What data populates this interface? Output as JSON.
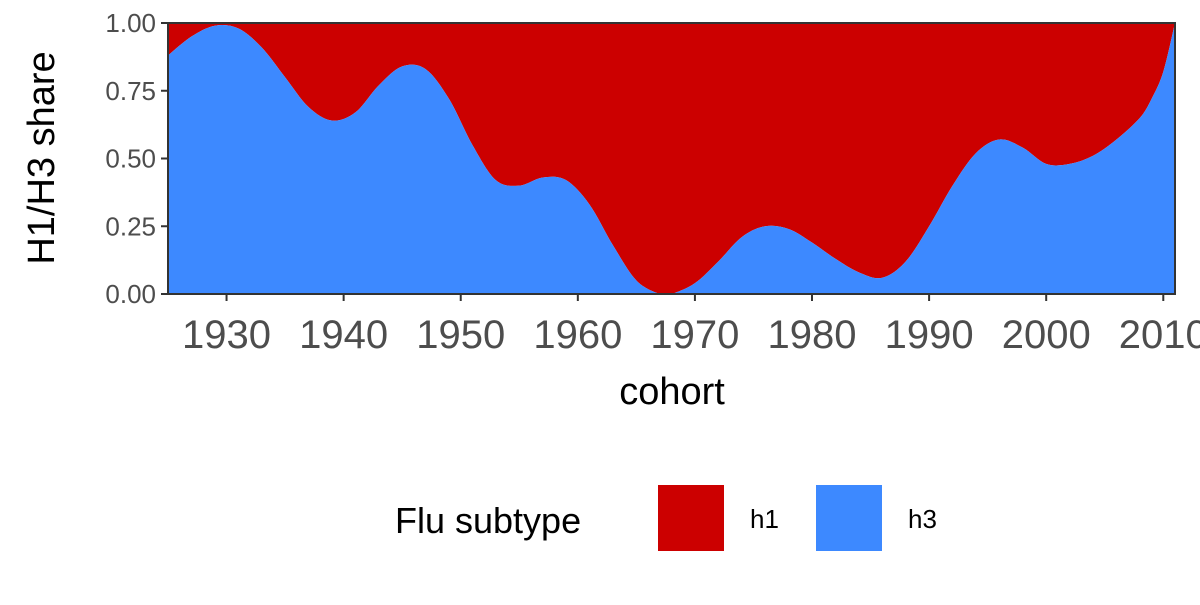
{
  "chart_data": {
    "type": "area",
    "stacked": true,
    "normalized": true,
    "xlabel": "cohort",
    "ylabel": "H1/H3 share",
    "xlim": [
      1925,
      2011
    ],
    "ylim": [
      0,
      1
    ],
    "x_ticks": [
      1930,
      1940,
      1950,
      1960,
      1970,
      1980,
      1990,
      2000,
      2010
    ],
    "x_tick_labels": [
      "1930",
      "1940",
      "1950",
      "1960",
      "1970",
      "1980",
      "1990",
      "2000",
      "2010"
    ],
    "y_ticks": [
      0,
      0.25,
      0.5,
      0.75,
      1
    ],
    "y_tick_labels": [
      "0.00",
      "0.25",
      "0.50",
      "0.75",
      "1.00"
    ],
    "grid": false,
    "legend": {
      "title": "Flu subtype",
      "position": "bottom"
    },
    "colors": {
      "h1": "#CC0000",
      "h3": "#3D89FF"
    },
    "x": [
      1925,
      1927,
      1929,
      1931,
      1933,
      1935,
      1937,
      1939,
      1941,
      1943,
      1945,
      1947,
      1949,
      1951,
      1953,
      1955,
      1957,
      1959,
      1961,
      1963,
      1965,
      1967,
      1968,
      1970,
      1972,
      1974,
      1976,
      1978,
      1980,
      1982,
      1984,
      1986,
      1988,
      1990,
      1992,
      1994,
      1996,
      1998,
      2000,
      2002,
      2004,
      2006,
      2008,
      2009,
      2010,
      2011
    ],
    "series": [
      {
        "name": "h1",
        "values": [
          0.12,
          0.05,
          0.01,
          0.02,
          0.09,
          0.2,
          0.31,
          0.36,
          0.33,
          0.23,
          0.16,
          0.17,
          0.28,
          0.45,
          0.58,
          0.6,
          0.57,
          0.58,
          0.67,
          0.82,
          0.95,
          1.0,
          1.0,
          0.96,
          0.88,
          0.79,
          0.75,
          0.76,
          0.81,
          0.87,
          0.92,
          0.94,
          0.88,
          0.75,
          0.6,
          0.48,
          0.43,
          0.46,
          0.52,
          0.52,
          0.49,
          0.43,
          0.35,
          0.28,
          0.18,
          0.0
        ]
      },
      {
        "name": "h3",
        "values": [
          0.88,
          0.95,
          0.99,
          0.98,
          0.91,
          0.8,
          0.69,
          0.64,
          0.67,
          0.77,
          0.84,
          0.83,
          0.72,
          0.55,
          0.42,
          0.4,
          0.43,
          0.42,
          0.33,
          0.18,
          0.05,
          0.0,
          0.0,
          0.04,
          0.12,
          0.21,
          0.25,
          0.24,
          0.19,
          0.13,
          0.08,
          0.06,
          0.12,
          0.25,
          0.4,
          0.52,
          0.57,
          0.54,
          0.48,
          0.48,
          0.51,
          0.57,
          0.65,
          0.72,
          0.82,
          1.0
        ]
      }
    ]
  }
}
